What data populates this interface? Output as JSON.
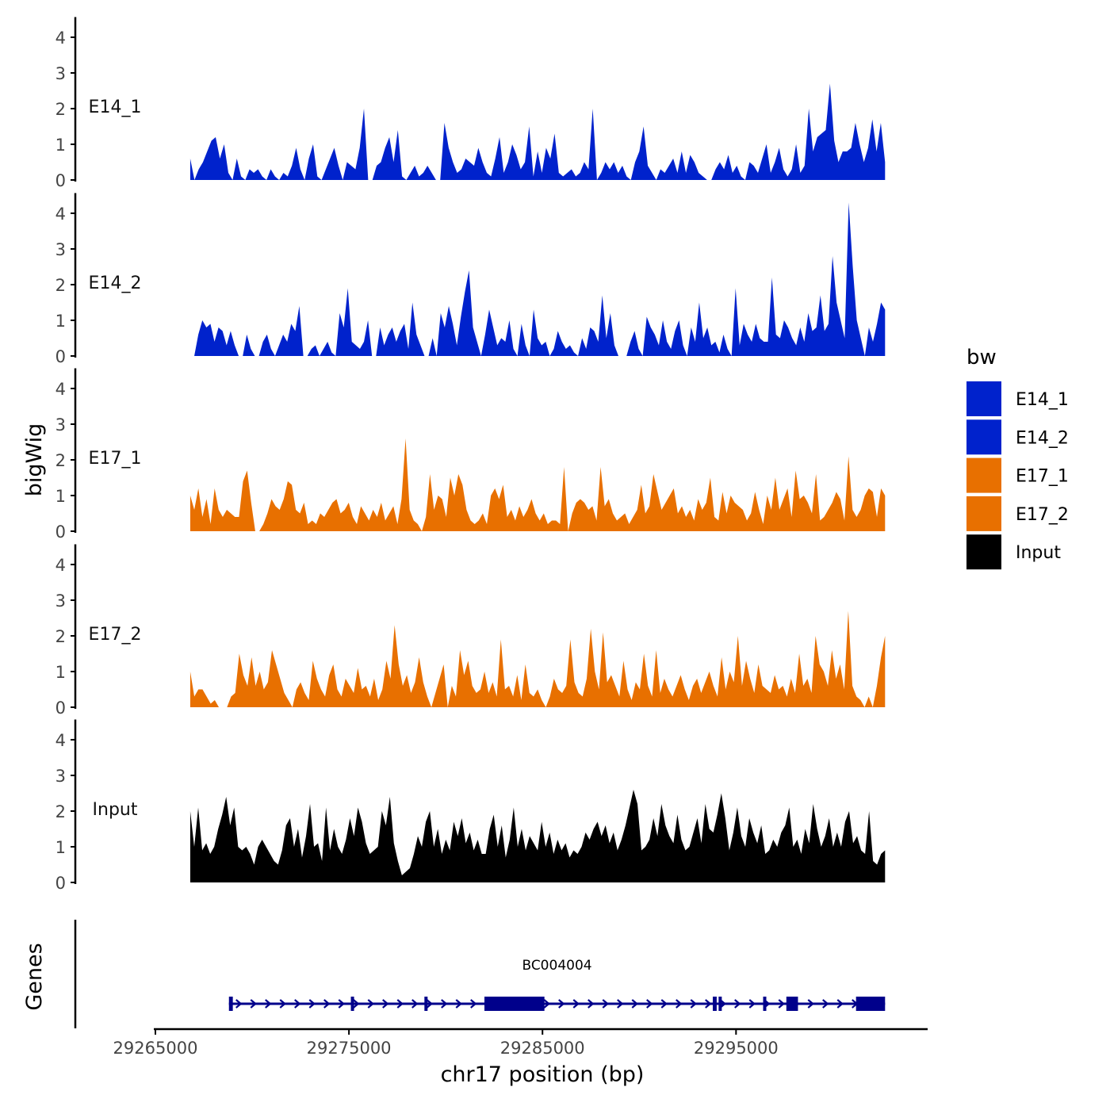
{
  "chart_data": {
    "type": "area",
    "title": "",
    "xlabel": "chr17 position (bp)",
    "ylabel": "bigWig",
    "genes_label": "Genes",
    "xlim": [
      29265000,
      29304900
    ],
    "x_ticks": [
      29265000,
      29275000,
      29285000,
      29295000
    ],
    "ylim": [
      0,
      4.3
    ],
    "y_ticks": [
      0,
      1,
      2,
      3,
      4
    ],
    "x_start": 29266800,
    "x_end": 29302700,
    "legend": {
      "title": "bw",
      "position": "right",
      "entries": [
        {
          "name": "E14_1",
          "color": "#0022cc"
        },
        {
          "name": "E14_2",
          "color": "#0022cc"
        },
        {
          "name": "E17_1",
          "color": "#e87000"
        },
        {
          "name": "E17_2",
          "color": "#e87000"
        },
        {
          "name": "Input",
          "color": "#000000"
        }
      ]
    },
    "series": [
      {
        "name": "E14_1",
        "color": "#0022cc",
        "values": [
          0.6,
          0,
          0.3,
          0.5,
          0.8,
          1.1,
          1.2,
          0.6,
          1.0,
          0.2,
          0,
          0.6,
          0.1,
          0,
          0.3,
          0.2,
          0.3,
          0.1,
          0,
          0.3,
          0.1,
          0,
          0.2,
          0.1,
          0.4,
          0.9,
          0.3,
          0,
          0.6,
          1.0,
          0.1,
          0,
          0.3,
          0.6,
          0.9,
          0.4,
          0,
          0.5,
          0.4,
          0.3,
          0.9,
          2.0,
          0,
          0,
          0.4,
          0.5,
          0.9,
          1.2,
          0.5,
          1.4,
          0.1,
          0,
          0.2,
          0.4,
          0.1,
          0.2,
          0.4,
          0.2,
          0,
          0,
          1.6,
          0.9,
          0.5,
          0.2,
          0.3,
          0.6,
          0.5,
          0.4,
          0.9,
          0.5,
          0.2,
          0.1,
          0.6,
          1.2,
          0.2,
          0.5,
          1.0,
          0.7,
          0.3,
          0.5,
          1.5,
          0.1,
          0.8,
          0.2,
          0.9,
          0.6,
          1.3,
          0.2,
          0.1,
          0.2,
          0.3,
          0.1,
          0.2,
          0.5,
          0.3,
          2.0,
          0,
          0.2,
          0.5,
          0.3,
          0.5,
          0.2,
          0.4,
          0.1,
          0,
          0.5,
          0.8,
          1.5,
          0.4,
          0.2,
          0,
          0.3,
          0.2,
          0.4,
          0.6,
          0.2,
          0.8,
          0.2,
          0.7,
          0.5,
          0.2,
          0.1,
          0,
          0,
          0.3,
          0.5,
          0.3,
          0.7,
          0.2,
          0.4,
          0.1,
          0,
          0.5,
          0.4,
          0.2,
          0.6,
          1.0,
          0.2,
          0.5,
          0.9,
          0.3,
          0.1,
          0.3,
          1.0,
          0.2,
          0.4,
          2.0,
          0.8,
          1.2,
          1.3,
          1.4,
          2.7,
          1.1,
          0.5,
          0.8,
          0.8,
          0.9,
          1.6,
          1.0,
          0.5,
          0.9,
          1.7,
          0.8,
          1.6,
          0.5
        ]
      },
      {
        "name": "E14_2",
        "color": "#0022cc",
        "values": [
          0,
          0,
          0.6,
          1.0,
          0.8,
          0.9,
          0.4,
          0.8,
          0.7,
          0.3,
          0.7,
          0.3,
          0,
          0,
          0.6,
          0.2,
          0,
          0,
          0.4,
          0.6,
          0.2,
          0,
          0.3,
          0.6,
          0.4,
          0.9,
          0.7,
          1.4,
          0,
          0,
          0.2,
          0.3,
          0,
          0.2,
          0.4,
          0.1,
          0,
          1.2,
          0.8,
          1.9,
          0.4,
          0.3,
          0.2,
          0.4,
          1.0,
          0,
          0,
          0.8,
          0.3,
          0.6,
          0.8,
          0.4,
          0.7,
          0.9,
          0.2,
          1.5,
          0.6,
          0.3,
          0,
          0,
          0.5,
          0,
          1.2,
          0.8,
          1.4,
          0.9,
          0.3,
          1.1,
          1.8,
          2.4,
          0.8,
          0.4,
          0,
          0.6,
          1.3,
          0.8,
          0.3,
          0.5,
          0.4,
          1.0,
          0.2,
          0,
          0.9,
          0.3,
          0,
          1.3,
          0.5,
          0.3,
          0.4,
          0,
          0.2,
          0.7,
          0.4,
          0.2,
          0.3,
          0.1,
          0,
          0.5,
          0.2,
          0.8,
          0.7,
          0.4,
          1.7,
          0.5,
          1.2,
          0.3,
          0,
          0,
          0,
          0.4,
          0.7,
          0.2,
          0,
          1.1,
          0.8,
          0.6,
          0.3,
          1.0,
          0.4,
          0.2,
          0.7,
          1.0,
          0.3,
          0,
          0.8,
          0.4,
          1.5,
          0.5,
          0.8,
          0.3,
          0.4,
          0.1,
          0.6,
          0.2,
          0,
          1.9,
          0.3,
          0.9,
          0.6,
          0.4,
          0.9,
          0.5,
          0.4,
          0.4,
          2.2,
          0.6,
          0.5,
          1.0,
          0.8,
          0.5,
          0.3,
          0.8,
          0.4,
          1.2,
          0.7,
          0.8,
          1.7,
          0.7,
          0.9,
          2.8,
          1.5,
          1.0,
          0.5,
          4.3,
          2.5,
          1.0,
          0.5,
          0,
          0.8,
          0.4,
          0.9,
          1.5,
          1.3
        ]
      },
      {
        "name": "E17_1",
        "color": "#e87000",
        "values": [
          1.0,
          0.6,
          1.2,
          0.4,
          0.9,
          0.2,
          1.2,
          0.6,
          0.4,
          0.6,
          0.5,
          0.4,
          0.4,
          1.4,
          1.7,
          0.8,
          0,
          0,
          0.2,
          0.5,
          0.9,
          0.7,
          0.6,
          0.9,
          1.4,
          1.3,
          0.6,
          0.5,
          0.8,
          0.2,
          0.3,
          0.2,
          0.5,
          0.4,
          0.6,
          0.8,
          0.9,
          0.5,
          0.6,
          0.8,
          0.4,
          0.2,
          0.7,
          0.5,
          0.3,
          0.6,
          0.4,
          0.8,
          0.3,
          0.5,
          0.7,
          0.2,
          0.9,
          2.6,
          0.6,
          0.3,
          0.2,
          0,
          0.4,
          1.6,
          0.6,
          1.0,
          0.9,
          0.4,
          1.5,
          1.0,
          1.6,
          1.3,
          0.6,
          0.3,
          0.2,
          0.3,
          0.5,
          0.2,
          1.0,
          1.2,
          0.9,
          1.3,
          0.4,
          0.6,
          0.3,
          0.7,
          0.4,
          0.6,
          0.9,
          0.5,
          0.3,
          0.5,
          0.2,
          0.3,
          0.3,
          0.2,
          1.8,
          0,
          0.5,
          0.8,
          0.9,
          0.8,
          0.6,
          0.7,
          0.3,
          1.8,
          0.7,
          0.9,
          0.5,
          0.3,
          0.4,
          0.5,
          0.2,
          0.4,
          0.6,
          1.3,
          0.5,
          0.7,
          1.6,
          1.1,
          0.6,
          0.8,
          1.0,
          1.2,
          0.5,
          0.7,
          0.4,
          0.6,
          0.3,
          0.9,
          0.6,
          0.8,
          1.5,
          0.4,
          0.3,
          1.1,
          0.5,
          1.0,
          0.8,
          0.7,
          0.6,
          0.3,
          0.5,
          1.1,
          0.6,
          0.2,
          1.0,
          0.6,
          1.5,
          0.6,
          0.9,
          1.2,
          0.4,
          1.7,
          0.9,
          1.0,
          0.8,
          0.5,
          1.6,
          0.3,
          0.4,
          0.6,
          0.8,
          1.1,
          0.9,
          0.3,
          2.1,
          0.6,
          0.4,
          0.6,
          1.0,
          1.2,
          1.1,
          0.4,
          1.2,
          1.0
        ]
      },
      {
        "name": "E17_2",
        "color": "#e87000",
        "values": [
          1.0,
          0.3,
          0.5,
          0.5,
          0.3,
          0.1,
          0.2,
          0,
          0,
          0,
          0.3,
          0.4,
          1.5,
          0.9,
          0.6,
          1.4,
          0.6,
          1.0,
          0.5,
          0.7,
          1.6,
          1.2,
          0.8,
          0.4,
          0.2,
          0,
          0.5,
          0.7,
          0.4,
          0.2,
          1.3,
          0.8,
          0.5,
          0.3,
          0.9,
          1.2,
          0.5,
          0.3,
          0.8,
          0.6,
          0.4,
          1.1,
          0.5,
          0.6,
          0.3,
          0.8,
          0.2,
          0.5,
          1.3,
          0.8,
          2.3,
          1.2,
          0.6,
          0.9,
          0.4,
          0.7,
          1.4,
          0.7,
          0.3,
          0,
          0.4,
          0.8,
          1.2,
          0,
          0.6,
          0.3,
          1.6,
          0.9,
          1.3,
          0.6,
          0.4,
          0.5,
          1.0,
          0.4,
          0.7,
          0.3,
          1.9,
          0.5,
          0.6,
          0.3,
          0.9,
          0.2,
          1.2,
          0.4,
          0.3,
          0.5,
          0.2,
          0,
          0.3,
          0.8,
          0.5,
          0.4,
          0.6,
          1.9,
          0.7,
          0.4,
          0.3,
          0.8,
          2.2,
          1.0,
          0.5,
          2.1,
          0.7,
          0.9,
          0.6,
          0.3,
          1.3,
          0.5,
          0.2,
          0.7,
          0.5,
          1.5,
          0.6,
          0.3,
          1.6,
          0.4,
          0.8,
          0.5,
          0.3,
          0.6,
          0.9,
          0.5,
          0.2,
          0.6,
          0.8,
          0.4,
          0.7,
          1.0,
          0.6,
          0.3,
          1.4,
          0.5,
          1.0,
          0.7,
          2.0,
          0.6,
          1.3,
          0.8,
          0.4,
          1.2,
          0.6,
          0.5,
          0.4,
          0.9,
          0.5,
          0.6,
          0.3,
          0.8,
          0.4,
          1.5,
          0.6,
          0.8,
          0.4,
          2.0,
          1.2,
          1.0,
          0.6,
          1.6,
          0.8,
          1.2,
          0.5,
          2.7,
          0.6,
          0.3,
          0.2,
          0,
          0.3,
          0,
          0.6,
          1.4,
          2.0
        ]
      },
      {
        "name": "Input",
        "color": "#000000",
        "values": [
          2.0,
          1.0,
          2.1,
          0.9,
          1.1,
          0.8,
          1.0,
          1.5,
          1.9,
          2.4,
          1.6,
          2.1,
          1.0,
          0.9,
          1.0,
          0.8,
          0.5,
          1.0,
          1.2,
          1.0,
          0.8,
          0.6,
          0.5,
          0.9,
          1.6,
          1.8,
          1.0,
          1.5,
          0.7,
          1.3,
          2.2,
          1.0,
          1.1,
          0.6,
          2.1,
          0.9,
          1.5,
          1.0,
          0.8,
          1.2,
          1.8,
          1.3,
          2.1,
          1.7,
          1.1,
          0.8,
          0.9,
          1.0,
          2.0,
          1.6,
          2.4,
          1.1,
          0.6,
          0.2,
          0.3,
          0.4,
          0.8,
          1.3,
          1.0,
          1.7,
          2.0,
          1.0,
          1.5,
          0.8,
          1.2,
          0.9,
          1.7,
          1.3,
          1.8,
          1.1,
          1.4,
          0.9,
          1.2,
          0.8,
          0.8,
          1.5,
          1.9,
          1.0,
          1.6,
          0.7,
          1.2,
          2.1,
          1.0,
          1.5,
          0.9,
          1.3,
          1.1,
          0.9,
          1.7,
          1.0,
          1.4,
          0.8,
          1.2,
          0.9,
          1.1,
          0.7,
          0.9,
          0.8,
          1.0,
          1.4,
          1.2,
          1.5,
          1.7,
          1.3,
          1.6,
          1.1,
          1.4,
          0.9,
          1.2,
          1.6,
          2.1,
          2.6,
          2.2,
          0.9,
          1.0,
          1.2,
          1.8,
          1.3,
          2.2,
          1.6,
          1.3,
          1.1,
          1.9,
          1.2,
          0.9,
          1.0,
          1.4,
          1.8,
          1.1,
          2.2,
          1.5,
          1.4,
          1.9,
          2.5,
          1.8,
          0.9,
          1.4,
          2.1,
          1.3,
          1.0,
          1.8,
          1.4,
          1.1,
          1.6,
          0.8,
          0.9,
          1.2,
          1.0,
          1.4,
          1.6,
          2.1,
          1.0,
          1.2,
          0.8,
          1.5,
          1.1,
          2.2,
          1.5,
          1.0,
          1.3,
          1.8,
          1.0,
          1.4,
          1.0,
          1.7,
          2.0,
          1.1,
          1.3,
          0.9,
          0.8,
          2.0,
          0.6,
          0.5,
          0.8,
          0.9
        ]
      }
    ],
    "genes": [
      {
        "name": "BC004004",
        "color": "#00008b",
        "strand": "+",
        "start": 29268800,
        "end": 29302700,
        "exons": [
          [
            29268800,
            29269000
          ],
          [
            29275100,
            29275250
          ],
          [
            29278900,
            29279050
          ],
          [
            29282000,
            29285100
          ],
          [
            29293800,
            29294000
          ],
          [
            29294100,
            29294250
          ],
          [
            29296400,
            29296550
          ],
          [
            29297600,
            29298200
          ],
          [
            29301200,
            29302700
          ]
        ]
      }
    ]
  }
}
